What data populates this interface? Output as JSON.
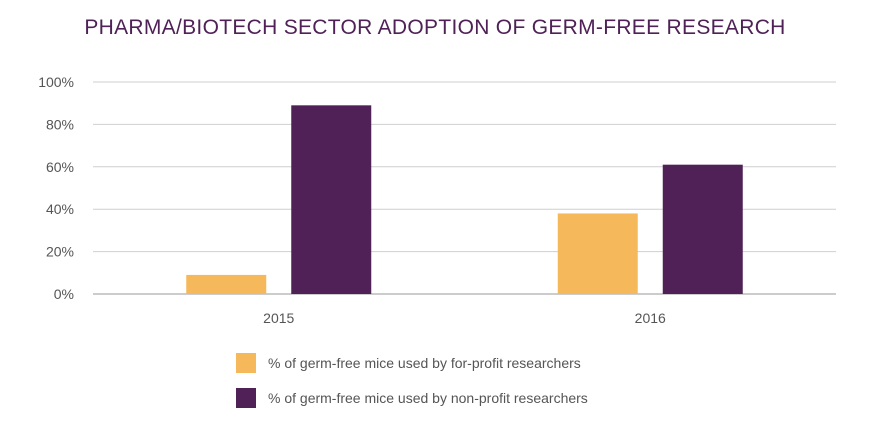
{
  "chart_data": {
    "type": "bar",
    "title": "PHARMA/BIOTECH SECTOR ADOPTION OF GERM-FREE RESEARCH",
    "categories": [
      "2015",
      "2016"
    ],
    "series": [
      {
        "name": "% of germ-free mice used by for-profit researchers",
        "color": "#f5b85a",
        "values": [
          9,
          38
        ]
      },
      {
        "name": "% of germ-free mice used by non-profit researchers",
        "color": "#4f2157",
        "values": [
          89,
          61
        ]
      }
    ],
    "ylim": [
      0,
      100
    ],
    "yticks": [
      0,
      20,
      40,
      60,
      80,
      100
    ],
    "ytick_labels": [
      "0%",
      "20%",
      "40%",
      "60%",
      "80%",
      "100%"
    ],
    "xlabel": "",
    "ylabel": "",
    "grid": true,
    "legend_position": "bottom"
  }
}
